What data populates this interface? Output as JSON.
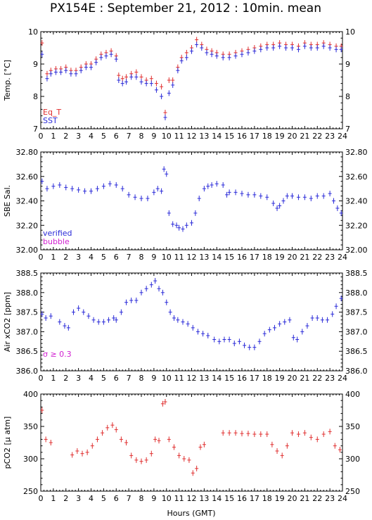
{
  "title": "PX154E : September 21, 2012 : 10min. mean",
  "xlabel": "Hours (GMT)",
  "colors": {
    "red": "#e03030",
    "blue": "#2a2ad8",
    "magenta": "#d020d0",
    "axis": "#000000"
  },
  "chart_data": [
    {
      "type": "scatter",
      "ylabel": "Temp. [°C]",
      "xlim": [
        0,
        24
      ],
      "ylim": [
        7,
        10
      ],
      "xticks": [
        0,
        1,
        2,
        3,
        4,
        5,
        6,
        7,
        8,
        9,
        10,
        11,
        12,
        13,
        14,
        15,
        16,
        17,
        18,
        19,
        20,
        21,
        22,
        23,
        24
      ],
      "yticks": [
        7,
        8,
        9,
        10
      ],
      "legend": [
        {
          "label": "Eq_T",
          "color": "#e03030"
        },
        {
          "label": "SST",
          "color": "#2a2ad8"
        }
      ],
      "series": [
        {
          "name": "Eq_T",
          "color": "#e03030",
          "x": [
            0.1,
            0.5,
            0.8,
            1.2,
            1.6,
            2.0,
            2.4,
            2.8,
            3.2,
            3.6,
            4.0,
            4.4,
            4.8,
            5.2,
            5.6,
            6.0,
            6.2,
            6.5,
            6.8,
            7.2,
            7.6,
            8.0,
            8.4,
            8.8,
            9.2,
            9.6,
            9.9,
            10.2,
            10.5,
            10.9,
            11.2,
            11.6,
            12.0,
            12.4,
            12.8,
            13.2,
            13.6,
            14.0,
            14.5,
            15.0,
            15.5,
            16.0,
            16.5,
            17.0,
            17.5,
            18.0,
            18.5,
            19.0,
            19.5,
            20.0,
            20.5,
            21.0,
            21.5,
            22.0,
            22.5,
            23.0,
            23.5,
            23.9
          ],
          "y": [
            9.65,
            8.7,
            8.8,
            8.85,
            8.85,
            8.9,
            8.8,
            8.8,
            8.9,
            9.0,
            9.0,
            9.15,
            9.3,
            9.35,
            9.4,
            9.25,
            8.65,
            8.55,
            8.6,
            8.7,
            8.75,
            8.6,
            8.5,
            8.55,
            8.4,
            8.3,
            7.5,
            8.5,
            8.5,
            8.9,
            9.2,
            9.35,
            9.5,
            9.75,
            9.6,
            9.45,
            9.4,
            9.35,
            9.3,
            9.3,
            9.35,
            9.4,
            9.45,
            9.5,
            9.55,
            9.6,
            9.6,
            9.65,
            9.6,
            9.6,
            9.55,
            9.65,
            9.6,
            9.6,
            9.65,
            9.6,
            9.55,
            9.55
          ]
        },
        {
          "name": "SST",
          "color": "#2a2ad8",
          "x": [
            0.1,
            0.5,
            0.8,
            1.2,
            1.6,
            2.0,
            2.4,
            2.8,
            3.2,
            3.6,
            4.0,
            4.4,
            4.8,
            5.2,
            5.6,
            6.0,
            6.2,
            6.5,
            6.8,
            7.2,
            7.6,
            8.0,
            8.4,
            8.8,
            9.2,
            9.6,
            9.9,
            10.2,
            10.5,
            10.9,
            11.2,
            11.6,
            12.0,
            12.4,
            12.8,
            13.2,
            13.6,
            14.0,
            14.5,
            15.0,
            15.5,
            16.0,
            16.5,
            17.0,
            17.5,
            18.0,
            18.5,
            19.0,
            19.5,
            20.0,
            20.5,
            21.0,
            21.5,
            22.0,
            22.5,
            23.0,
            23.5,
            23.9
          ],
          "y": [
            9.3,
            8.55,
            8.7,
            8.75,
            8.75,
            8.8,
            8.7,
            8.7,
            8.8,
            8.9,
            8.9,
            9.05,
            9.2,
            9.25,
            9.3,
            9.15,
            8.5,
            8.4,
            8.45,
            8.6,
            8.6,
            8.45,
            8.4,
            8.4,
            8.2,
            8.0,
            7.35,
            8.1,
            8.35,
            8.8,
            9.1,
            9.2,
            9.4,
            9.6,
            9.5,
            9.35,
            9.3,
            9.25,
            9.2,
            9.2,
            9.25,
            9.3,
            9.35,
            9.4,
            9.45,
            9.5,
            9.5,
            9.55,
            9.5,
            9.5,
            9.45,
            9.55,
            9.5,
            9.5,
            9.55,
            9.5,
            9.45,
            9.45
          ]
        }
      ]
    },
    {
      "type": "scatter",
      "ylabel": "SBE Sal.",
      "xlim": [
        0,
        24
      ],
      "ylim": [
        32,
        32.8
      ],
      "xticks": [
        0,
        1,
        2,
        3,
        4,
        5,
        6,
        7,
        8,
        9,
        10,
        11,
        12,
        13,
        14,
        15,
        16,
        17,
        18,
        19,
        20,
        21,
        22,
        23,
        24
      ],
      "yticks": [
        32,
        32.2,
        32.4,
        32.6,
        32.8
      ],
      "legend": [
        {
          "label": "verified",
          "color": "#2a2ad8"
        },
        {
          "label": "bubble",
          "color": "#d020d0"
        }
      ],
      "series": [
        {
          "name": "verified",
          "color": "#2a2ad8",
          "x": [
            0.1,
            0.5,
            1.0,
            1.5,
            2.0,
            2.5,
            3.0,
            3.5,
            4.0,
            4.5,
            5.0,
            5.5,
            6.0,
            6.5,
            7.0,
            7.5,
            8.0,
            8.5,
            9.0,
            9.3,
            9.6,
            9.8,
            10.0,
            10.2,
            10.5,
            10.8,
            11.0,
            11.3,
            11.6,
            12.0,
            12.3,
            12.6,
            13.0,
            13.3,
            13.6,
            14.0,
            14.5,
            14.8,
            15.0,
            15.5,
            16.0,
            16.5,
            17.0,
            17.5,
            18.0,
            18.5,
            18.8,
            19.0,
            19.3,
            19.6,
            20.0,
            20.5,
            21.0,
            21.5,
            22.0,
            22.5,
            23.0,
            23.3,
            23.6,
            23.9
          ],
          "y": [
            32.56,
            32.5,
            32.52,
            32.53,
            32.51,
            32.5,
            32.49,
            32.48,
            32.48,
            32.5,
            32.52,
            32.54,
            32.53,
            32.5,
            32.45,
            32.43,
            32.42,
            32.42,
            32.47,
            32.5,
            32.48,
            32.66,
            32.62,
            32.3,
            32.21,
            32.2,
            32.18,
            32.17,
            32.2,
            32.22,
            32.3,
            32.42,
            32.5,
            32.52,
            32.53,
            32.54,
            32.53,
            32.45,
            32.47,
            32.47,
            32.46,
            32.45,
            32.45,
            32.44,
            32.43,
            32.38,
            32.34,
            32.36,
            32.4,
            32.44,
            32.44,
            32.43,
            32.43,
            32.42,
            32.44,
            32.44,
            32.46,
            32.4,
            32.34,
            32.3
          ]
        }
      ]
    },
    {
      "type": "scatter",
      "ylabel": "Air xCO2 [ppm]",
      "xlim": [
        0,
        24
      ],
      "ylim": [
        386,
        388.5
      ],
      "xticks": [
        0,
        1,
        2,
        3,
        4,
        5,
        6,
        7,
        8,
        9,
        10,
        11,
        12,
        13,
        14,
        15,
        16,
        17,
        18,
        19,
        20,
        21,
        22,
        23,
        24
      ],
      "yticks": [
        386,
        386.5,
        387,
        387.5,
        388,
        388.5
      ],
      "annotation": "σ ≥ 0.3",
      "series": [
        {
          "name": "",
          "color": "#2a2ad8",
          "x": [
            0.1,
            0.4,
            0.8,
            1.5,
            1.9,
            2.2,
            2.6,
            3.0,
            3.4,
            3.8,
            4.2,
            4.6,
            5.0,
            5.4,
            5.8,
            6.0,
            6.4,
            6.8,
            7.2,
            7.6,
            8.0,
            8.4,
            8.8,
            9.1,
            9.4,
            9.7,
            10.0,
            10.3,
            10.6,
            10.9,
            11.3,
            11.7,
            12.1,
            12.5,
            12.9,
            13.3,
            13.8,
            14.2,
            14.6,
            15.0,
            15.4,
            15.8,
            16.2,
            16.6,
            17.0,
            17.4,
            17.8,
            18.2,
            18.6,
            19.0,
            19.4,
            19.8,
            20.1,
            20.4,
            20.8,
            21.2,
            21.6,
            22.0,
            22.4,
            22.8,
            23.2,
            23.5,
            23.9
          ],
          "y": [
            387.45,
            387.35,
            387.4,
            387.25,
            387.15,
            387.1,
            387.5,
            387.6,
            387.5,
            387.4,
            387.3,
            387.25,
            387.25,
            387.3,
            387.35,
            387.3,
            387.5,
            387.75,
            387.8,
            387.8,
            388.0,
            388.1,
            388.2,
            388.3,
            388.1,
            388.0,
            387.75,
            387.5,
            387.35,
            387.3,
            387.25,
            387.2,
            387.1,
            387.0,
            386.95,
            386.9,
            386.8,
            386.75,
            386.8,
            386.8,
            386.7,
            386.75,
            386.65,
            386.6,
            386.6,
            386.75,
            386.95,
            387.05,
            387.1,
            387.2,
            387.25,
            387.3,
            386.85,
            386.8,
            387.0,
            387.15,
            387.35,
            387.35,
            387.3,
            387.3,
            387.45,
            387.65,
            387.85
          ]
        }
      ]
    },
    {
      "type": "scatter",
      "ylabel": "pCO2 [μ atm]",
      "xlim": [
        0,
        24
      ],
      "ylim": [
        250,
        400
      ],
      "xticks": [
        0,
        1,
        2,
        3,
        4,
        5,
        6,
        7,
        8,
        9,
        10,
        11,
        12,
        13,
        14,
        15,
        16,
        17,
        18,
        19,
        20,
        21,
        22,
        23,
        24
      ],
      "yticks": [
        250,
        300,
        350,
        400
      ],
      "series": [
        {
          "name": "",
          "color": "#e03030",
          "x": [
            0.1,
            0.4,
            0.8,
            2.5,
            2.9,
            3.3,
            3.7,
            4.1,
            4.5,
            4.9,
            5.3,
            5.7,
            6.0,
            6.4,
            6.8,
            7.2,
            7.6,
            8.0,
            8.4,
            8.8,
            9.1,
            9.4,
            9.7,
            9.9,
            10.2,
            10.6,
            11.0,
            11.4,
            11.8,
            12.1,
            12.4,
            12.7,
            13.0,
            14.5,
            15.0,
            15.5,
            16.0,
            16.5,
            17.0,
            17.5,
            18.0,
            18.4,
            18.8,
            19.2,
            19.6,
            20.0,
            20.5,
            21.0,
            21.5,
            22.0,
            22.5,
            23.0,
            23.4,
            23.8
          ],
          "y": [
            375,
            330,
            325,
            306,
            312,
            308,
            310,
            320,
            330,
            340,
            348,
            352,
            345,
            330,
            325,
            305,
            298,
            296,
            298,
            308,
            330,
            328,
            385,
            388,
            330,
            318,
            305,
            300,
            298,
            278,
            285,
            318,
            322,
            340,
            340,
            340,
            339,
            339,
            338,
            338,
            338,
            322,
            312,
            305,
            320,
            340,
            338,
            340,
            333,
            330,
            338,
            342,
            320,
            314
          ]
        }
      ]
    }
  ]
}
